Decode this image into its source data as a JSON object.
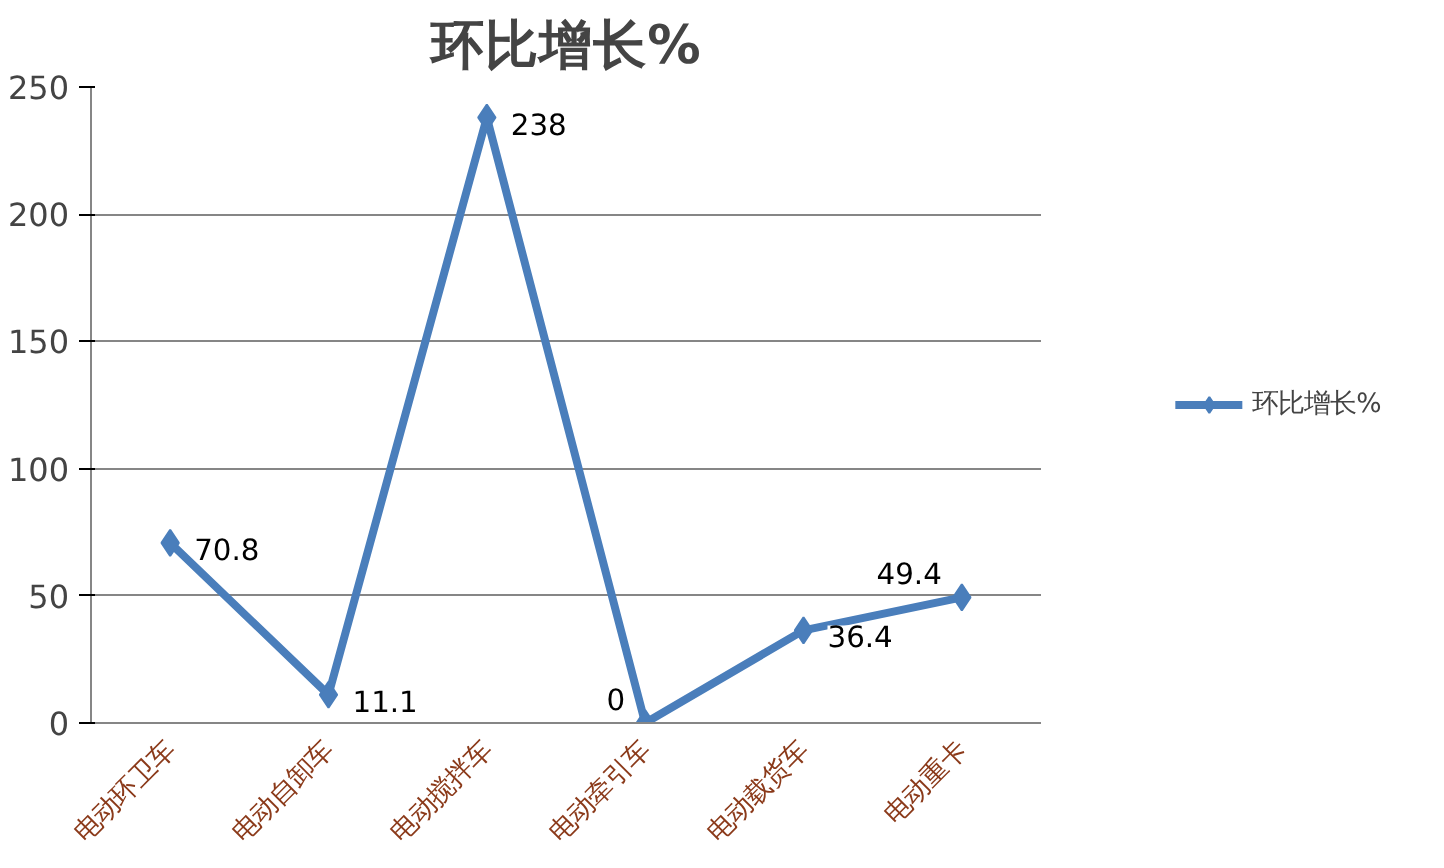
{
  "chart_data": {
    "type": "line",
    "title": "环比增长%",
    "categories": [
      "电动环卫车",
      "电动自卸车",
      "电动搅拌车",
      "电动牵引车",
      "电动载货车",
      "电动重卡"
    ],
    "series": [
      {
        "name": "环比增长%",
        "color": "#4a7ebb",
        "values": [
          70.8,
          11.1,
          238,
          0,
          36.4,
          49.4
        ]
      }
    ],
    "ylim": [
      0,
      250
    ],
    "yticks": [
      0,
      50,
      100,
      150,
      200,
      250
    ],
    "grid": "y",
    "legend": "right",
    "marker": "diamond",
    "line_style": "solid",
    "data_labels": true
  }
}
